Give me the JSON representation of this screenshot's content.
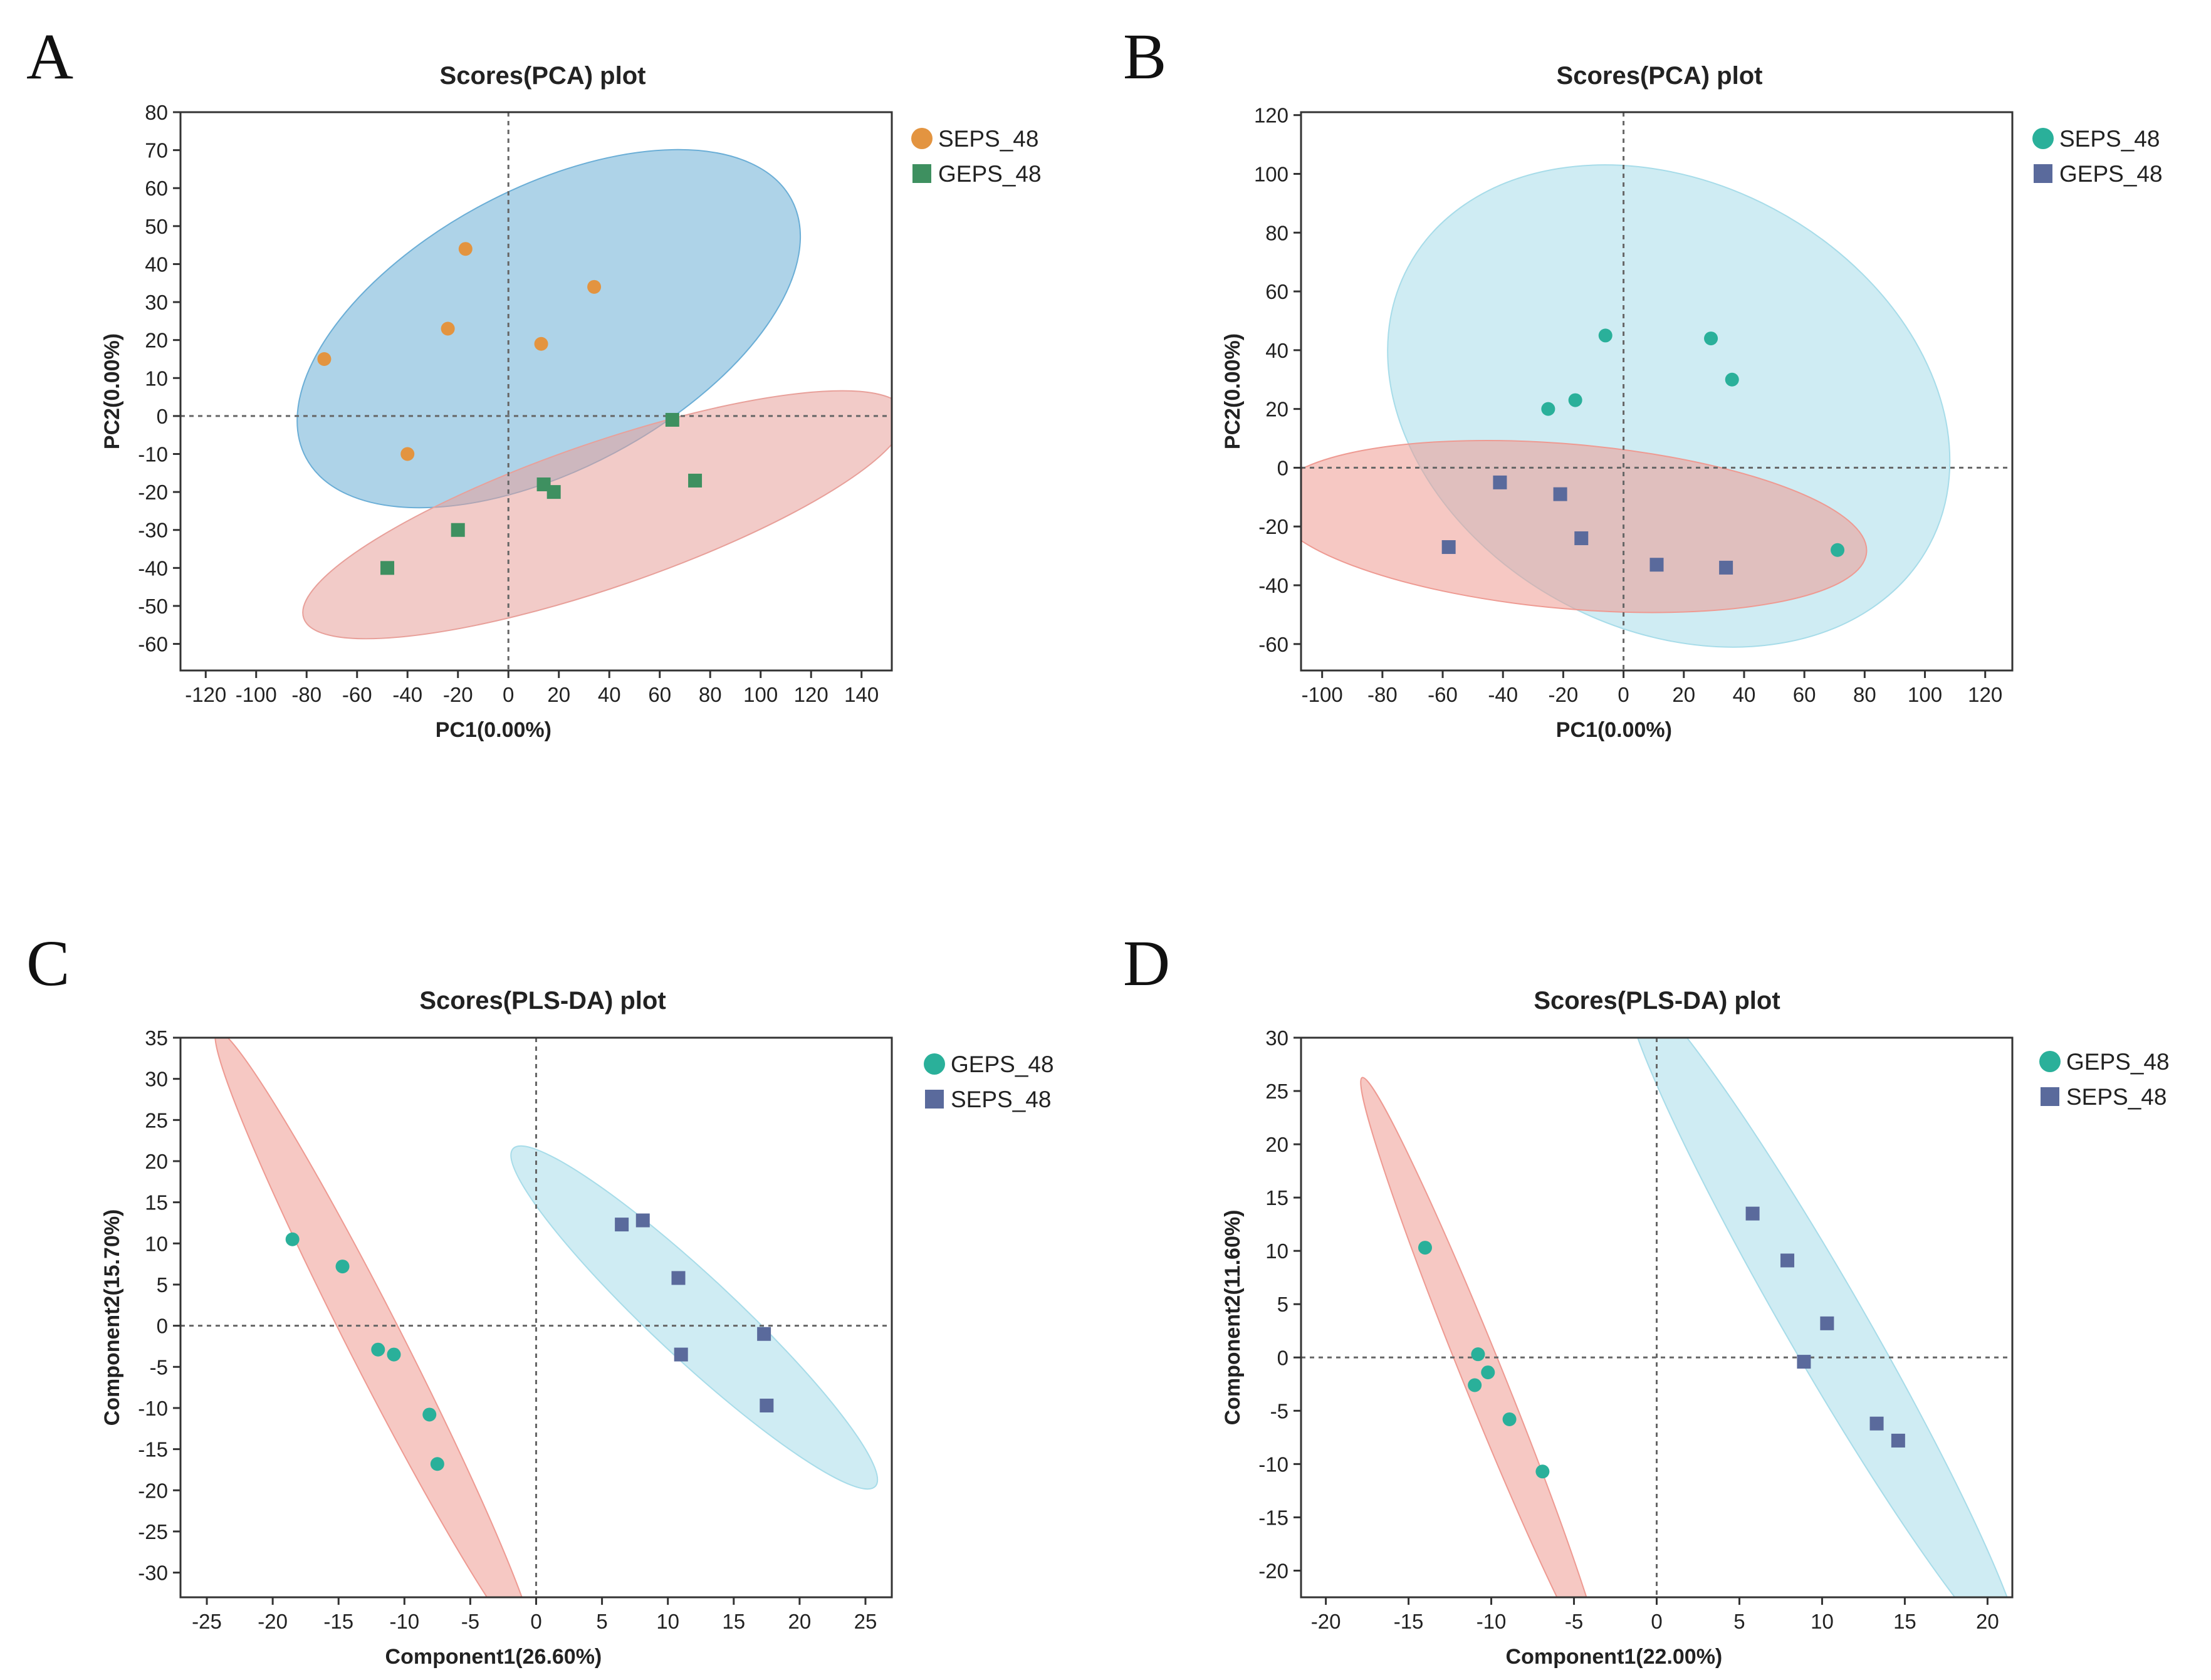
{
  "chart_data": [
    {
      "panel": "A",
      "type": "scatter",
      "title": "Scores(PCA) plot",
      "xlabel": "PC1(0.00%)",
      "ylabel": "PC2(0.00%)",
      "xlim": [
        -130,
        152
      ],
      "ylim": [
        -67,
        80
      ],
      "xticks": [
        -120,
        -100,
        -80,
        -60,
        -40,
        -20,
        0,
        20,
        40,
        60,
        80,
        100,
        120,
        140
      ],
      "yticks": [
        -60,
        -50,
        -40,
        -30,
        -20,
        -10,
        0,
        10,
        20,
        30,
        40,
        50,
        60,
        70,
        80
      ],
      "legend_position": "right",
      "series": [
        {
          "name": "SEPS_48",
          "marker": "circle",
          "color": "#E39440",
          "points": [
            [
              -73,
              15
            ],
            [
              -17,
              44
            ],
            [
              -24,
              23
            ],
            [
              13,
              19
            ],
            [
              34,
              34
            ],
            [
              -40,
              -10
            ]
          ],
          "ellipse": {
            "cx": 16,
            "cy": 23,
            "rx": 109,
            "ry": 37,
            "angle_deg": 28,
            "color": "#6BAED6"
          }
        },
        {
          "name": "GEPS_48",
          "marker": "square",
          "color": "#3E9060",
          "points": [
            [
              65,
              -1
            ],
            [
              74,
              -17
            ],
            [
              14,
              -18
            ],
            [
              18,
              -20
            ],
            [
              -20,
              -30
            ],
            [
              -48,
              -40
            ]
          ],
          "ellipse": {
            "cx": 38,
            "cy": -26,
            "rx": 126,
            "ry": 19,
            "angle_deg": 19,
            "color": "#E8A09A"
          }
        }
      ]
    },
    {
      "panel": "B",
      "type": "scatter",
      "title": "Scores(PCA) plot",
      "xlabel": "PC1(0.00%)",
      "ylabel": "PC2(0.00%)",
      "xlim": [
        -107,
        129
      ],
      "ylim": [
        -69,
        121
      ],
      "xticks": [
        -100,
        -80,
        -60,
        -40,
        -20,
        0,
        20,
        40,
        60,
        80,
        100,
        120
      ],
      "yticks": [
        -60,
        -40,
        -20,
        0,
        20,
        40,
        60,
        80,
        100,
        120
      ],
      "legend_position": "right",
      "series": [
        {
          "name": "SEPS_48",
          "marker": "circle",
          "color": "#2AB09A",
          "points": [
            [
              -6,
              45
            ],
            [
              29,
              44
            ],
            [
              36,
              30
            ],
            [
              -16,
              23
            ],
            [
              -25,
              20
            ],
            [
              71,
              -28
            ]
          ],
          "ellipse": {
            "cx": 15,
            "cy": 21,
            "rx": 98,
            "ry": 76,
            "angle_deg": -28,
            "color": "#A7DCE9"
          }
        },
        {
          "name": "GEPS_48",
          "marker": "square",
          "color": "#5A6A9C",
          "points": [
            [
              -41,
              -5
            ],
            [
              -21,
              -9
            ],
            [
              -14,
              -24
            ],
            [
              -58,
              -27
            ],
            [
              11,
              -33
            ],
            [
              34,
              -34
            ]
          ],
          "ellipse": {
            "cx": -18,
            "cy": -20,
            "rx": 99,
            "ry": 28,
            "angle_deg": -5,
            "color": "#EE9A92"
          }
        }
      ]
    },
    {
      "panel": "C",
      "type": "scatter",
      "title": "Scores(PLS-DA) plot",
      "xlabel": "Component1(26.60%)",
      "ylabel": "Component2(15.70%)",
      "xlim": [
        -27,
        27
      ],
      "ylim": [
        -33,
        35
      ],
      "xticks": [
        -25,
        -20,
        -15,
        -10,
        -5,
        0,
        5,
        10,
        15,
        20,
        25
      ],
      "yticks": [
        -30,
        -25,
        -20,
        -15,
        -10,
        -5,
        0,
        5,
        10,
        15,
        20,
        25,
        30,
        35
      ],
      "legend_position": "right",
      "series": [
        {
          "name": "GEPS_48",
          "marker": "circle",
          "color": "#2AB09A",
          "points": [
            [
              -18.5,
              10.5
            ],
            [
              -14.7,
              7.2
            ],
            [
              -12,
              -2.9
            ],
            [
              -10.8,
              -3.5
            ],
            [
              -8.1,
              -10.8
            ],
            [
              -7.5,
              -16.8
            ]
          ],
          "ellipse": {
            "cx": -12.2,
            "cy": -2,
            "rx": 26.5,
            "ry": 3.3,
            "angle_deg": -63,
            "color": "#EE9A92"
          }
        },
        {
          "name": "SEPS_48",
          "marker": "square",
          "color": "#5A6A9C",
          "points": [
            [
              6.5,
              12.3
            ],
            [
              8.1,
              12.8
            ],
            [
              10.8,
              5.8
            ],
            [
              11,
              -3.5
            ],
            [
              17.3,
              -1
            ],
            [
              17.5,
              -9.7
            ]
          ],
          "ellipse": {
            "cx": 12,
            "cy": 1,
            "rx": 18.8,
            "ry": 5,
            "angle_deg": -43,
            "color": "#A7DCE9"
          }
        }
      ]
    },
    {
      "panel": "D",
      "type": "scatter",
      "title": "Scores(PLS-DA) plot",
      "xlabel": "Component1(22.00%)",
      "ylabel": "Component2(11.60%)",
      "xlim": [
        -21.5,
        21.5
      ],
      "ylim": [
        -22.5,
        30
      ],
      "xticks": [
        -20,
        -15,
        -10,
        -5,
        0,
        5,
        10,
        15,
        20
      ],
      "yticks": [
        -20,
        -15,
        -10,
        -5,
        0,
        5,
        10,
        15,
        20,
        25,
        30
      ],
      "legend_position": "right",
      "series": [
        {
          "name": "GEPS_48",
          "marker": "circle",
          "color": "#2AB09A",
          "points": [
            [
              -14,
              10.3
            ],
            [
              -10.8,
              0.3
            ],
            [
              -10.2,
              -1.4
            ],
            [
              -11,
              -2.6
            ],
            [
              -8.9,
              -5.8
            ],
            [
              -6.9,
              -10.7
            ]
          ],
          "ellipse": {
            "cx": -10.5,
            "cy": -1.8,
            "rx": 19.5,
            "ry": 1.9,
            "angle_deg": -68,
            "color": "#EE9A92"
          }
        },
        {
          "name": "SEPS_48",
          "marker": "square",
          "color": "#5A6A9C",
          "points": [
            [
              5.8,
              13.5
            ],
            [
              7.9,
              9.1
            ],
            [
              10.3,
              3.2
            ],
            [
              8.9,
              -0.4
            ],
            [
              13.3,
              -6.2
            ],
            [
              14.6,
              -7.8
            ]
          ],
          "ellipse": {
            "cx": 10.1,
            "cy": 3.4,
            "rx": 23.5,
            "ry": 3.7,
            "angle_deg": -60,
            "color": "#A7DCE9"
          }
        }
      ]
    }
  ]
}
